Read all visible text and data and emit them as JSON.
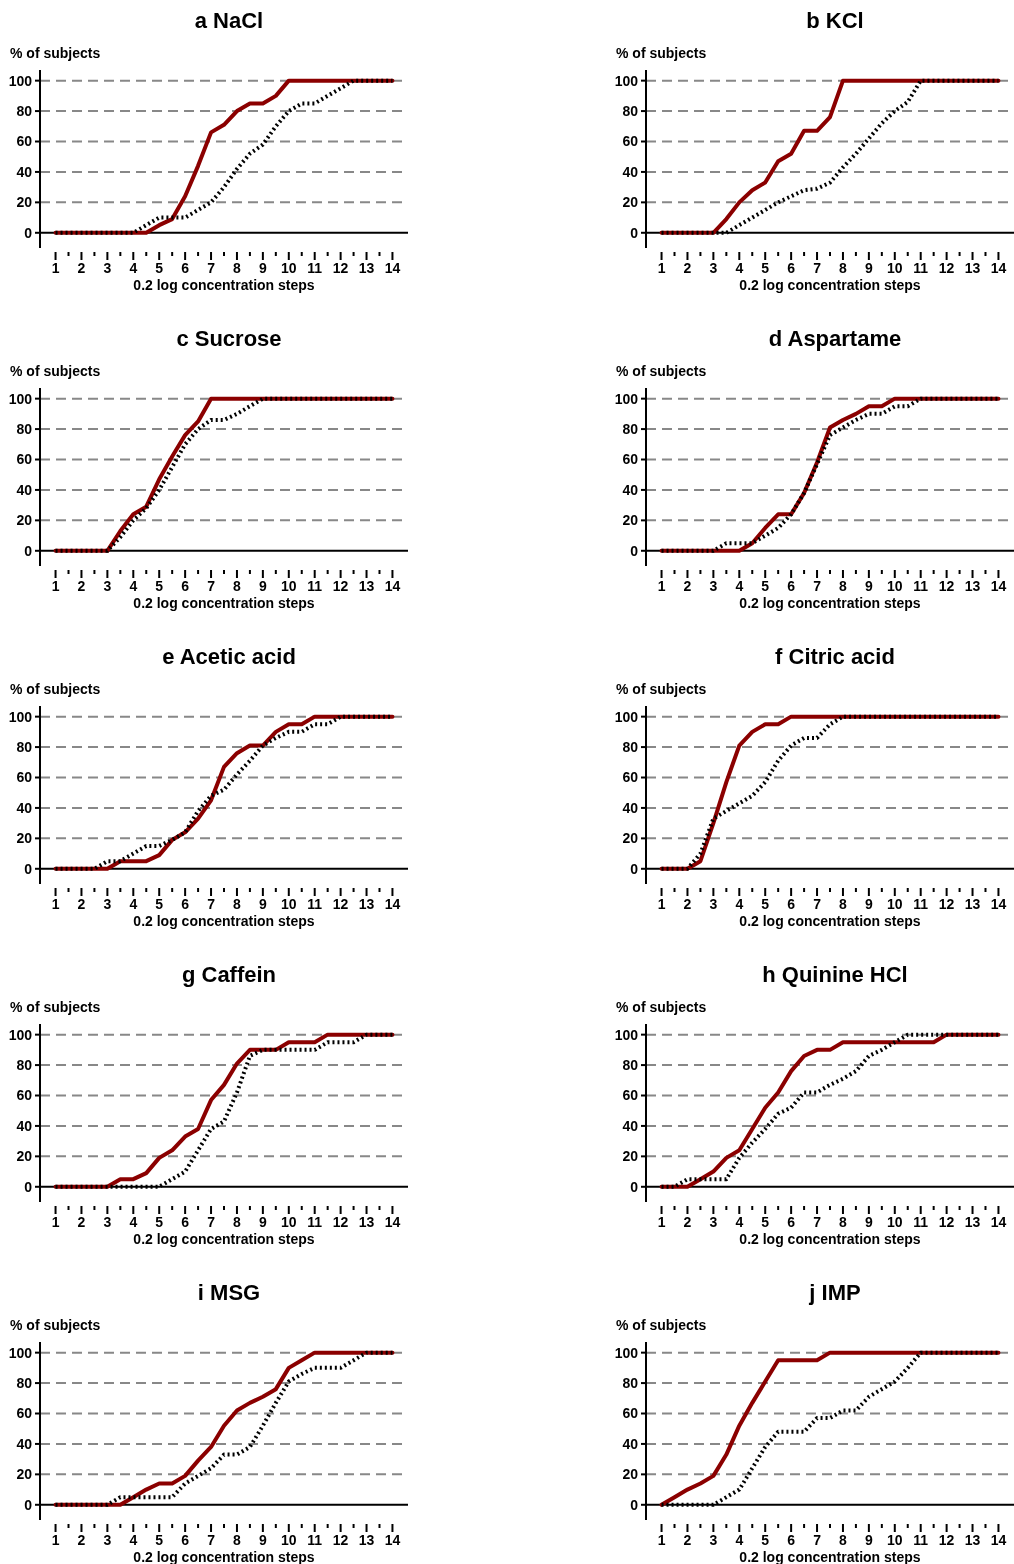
{
  "chart_data": [
    {
      "type": "line",
      "title": "a NaCl",
      "ylabel": "% of subjects",
      "xlabel": "0.2 log concentration steps",
      "xlim": [
        0.4,
        14.6
      ],
      "ylim": [
        -10,
        107
      ],
      "yticks": [
        0,
        20,
        40,
        60,
        80,
        100
      ],
      "xticks": [
        1,
        {
          "value": 1.5,
          "label": null
        },
        2,
        {
          "value": 2.5,
          "label": null
        },
        3,
        {
          "value": 3.5,
          "label": null
        },
        4,
        {
          "value": 4.5,
          "label": null
        },
        5,
        {
          "value": 5.5,
          "label": null
        },
        6,
        {
          "value": 6.5,
          "label": null
        },
        7,
        {
          "value": 7.5,
          "label": null
        },
        8,
        {
          "value": 8.5,
          "label": null
        },
        9,
        {
          "value": 9.5,
          "label": null
        },
        10,
        {
          "value": 10.5,
          "label": null
        },
        11,
        {
          "value": 11.5,
          "label": null
        },
        12,
        {
          "value": 12.5,
          "label": null
        },
        13,
        {
          "value": 13.5,
          "label": null
        },
        14
      ],
      "grid": "y",
      "marker": "none",
      "x": [
        1,
        1.5,
        2,
        2.5,
        3,
        3.5,
        4,
        4.5,
        5,
        5.5,
        6,
        6.5,
        7,
        7.5,
        8,
        8.5,
        9,
        9.5,
        10,
        10.5,
        11,
        11.5,
        12,
        12.5,
        13,
        13.5,
        14
      ],
      "series": [
        {
          "color": "#8b0000",
          "line_style": "solid",
          "values": [
            0,
            0,
            0,
            0,
            0,
            0,
            0,
            0,
            5,
            9,
            24,
            44,
            66,
            71,
            80,
            85,
            85,
            90,
            100,
            100,
            100,
            100,
            100,
            100,
            100,
            100,
            100
          ]
        },
        {
          "color": "#000000",
          "line_style": "dotted",
          "values": [
            0,
            0,
            0,
            0,
            0,
            0,
            0,
            5,
            10,
            10,
            10,
            15,
            20,
            30,
            42,
            52,
            58,
            70,
            80,
            85,
            85,
            90,
            95,
            100,
            100,
            100,
            100
          ]
        }
      ]
    },
    {
      "type": "line",
      "title": "b KCl",
      "ylabel": "% of subjects",
      "xlabel": "0.2 log concentration steps",
      "xlim": [
        0.4,
        14.6
      ],
      "ylim": [
        -10,
        107
      ],
      "yticks": [
        0,
        20,
        40,
        60,
        80,
        100
      ],
      "xticks": [
        1,
        {
          "value": 1.5,
          "label": null
        },
        2,
        {
          "value": 2.5,
          "label": null
        },
        3,
        {
          "value": 3.5,
          "label": null
        },
        4,
        {
          "value": 4.5,
          "label": null
        },
        5,
        {
          "value": 5.5,
          "label": null
        },
        6,
        {
          "value": 6.5,
          "label": null
        },
        7,
        {
          "value": 7.5,
          "label": null
        },
        8,
        {
          "value": 8.5,
          "label": null
        },
        9,
        {
          "value": 9.5,
          "label": null
        },
        10,
        {
          "value": 10.5,
          "label": null
        },
        11,
        {
          "value": 11.5,
          "label": null
        },
        12,
        {
          "value": 12.5,
          "label": null
        },
        13,
        {
          "value": 13.5,
          "label": null
        },
        14
      ],
      "grid": "y",
      "marker": "none",
      "x": [
        1,
        1.5,
        2,
        2.5,
        3,
        3.5,
        4,
        4.5,
        5,
        5.5,
        6,
        6.5,
        7,
        7.5,
        8,
        8.5,
        9,
        9.5,
        10,
        10.5,
        11,
        11.5,
        12,
        12.5,
        13,
        13.5,
        14
      ],
      "series": [
        {
          "color": "#8b0000",
          "line_style": "solid",
          "values": [
            0,
            0,
            0,
            0,
            0,
            9,
            20,
            28,
            33,
            47,
            52,
            67,
            67,
            76,
            100,
            100,
            100,
            100,
            100,
            100,
            100,
            100,
            100,
            100,
            100,
            100,
            100
          ]
        },
        {
          "color": "#000000",
          "line_style": "dotted",
          "values": [
            0,
            0,
            0,
            0,
            0,
            0,
            5,
            10,
            15,
            20,
            24,
            28,
            29,
            33,
            43,
            52,
            62,
            72,
            80,
            86,
            100,
            100,
            100,
            100,
            100,
            100,
            100
          ]
        }
      ]
    },
    {
      "type": "line",
      "title": "c Sucrose",
      "ylabel": "% of subjects",
      "xlabel": "0.2 log concentration steps",
      "xlim": [
        0.4,
        14.6
      ],
      "ylim": [
        -10,
        107
      ],
      "yticks": [
        0,
        20,
        40,
        60,
        80,
        100
      ],
      "xticks": [
        1,
        {
          "value": 1.5,
          "label": null
        },
        2,
        {
          "value": 2.5,
          "label": null
        },
        3,
        {
          "value": 3.5,
          "label": null
        },
        4,
        {
          "value": 4.5,
          "label": null
        },
        5,
        {
          "value": 5.5,
          "label": null
        },
        6,
        {
          "value": 6.5,
          "label": null
        },
        7,
        {
          "value": 7.5,
          "label": null
        },
        8,
        {
          "value": 8.5,
          "label": null
        },
        9,
        {
          "value": 9.5,
          "label": null
        },
        10,
        {
          "value": 10.5,
          "label": null
        },
        11,
        {
          "value": 11.5,
          "label": null
        },
        12,
        {
          "value": 12.5,
          "label": null
        },
        13,
        {
          "value": 13.5,
          "label": null
        },
        14
      ],
      "grid": "y",
      "marker": "none",
      "x": [
        1,
        1.5,
        2,
        2.5,
        3,
        3.5,
        4,
        4.5,
        5,
        5.5,
        6,
        6.5,
        7,
        7.5,
        8,
        8.5,
        9,
        9.5,
        10,
        10.5,
        11,
        11.5,
        12,
        12.5,
        13,
        13.5,
        14
      ],
      "series": [
        {
          "color": "#8b0000",
          "line_style": "solid",
          "values": [
            0,
            0,
            0,
            0,
            0,
            13,
            24,
            29,
            47,
            62,
            76,
            85,
            100,
            100,
            100,
            100,
            100,
            100,
            100,
            100,
            100,
            100,
            100,
            100,
            100,
            100,
            100
          ]
        },
        {
          "color": "#000000",
          "line_style": "dotted",
          "values": [
            0,
            0,
            0,
            0,
            0,
            9,
            20,
            28,
            40,
            55,
            70,
            80,
            86,
            86,
            90,
            95,
            100,
            100,
            100,
            100,
            100,
            100,
            100,
            100,
            100,
            100,
            100
          ]
        }
      ]
    },
    {
      "type": "line",
      "title": "d Aspartame",
      "ylabel": "% of subjects",
      "xlabel": "0.2 log concentration steps",
      "xlim": [
        0.4,
        14.6
      ],
      "ylim": [
        -10,
        107
      ],
      "yticks": [
        0,
        20,
        40,
        60,
        80,
        100
      ],
      "xticks": [
        1,
        {
          "value": 1.5,
          "label": null
        },
        2,
        {
          "value": 2.5,
          "label": null
        },
        3,
        {
          "value": 3.5,
          "label": null
        },
        4,
        {
          "value": 4.5,
          "label": null
        },
        5,
        {
          "value": 5.5,
          "label": null
        },
        6,
        {
          "value": 6.5,
          "label": null
        },
        7,
        {
          "value": 7.5,
          "label": null
        },
        8,
        {
          "value": 8.5,
          "label": null
        },
        9,
        {
          "value": 9.5,
          "label": null
        },
        10,
        {
          "value": 10.5,
          "label": null
        },
        11,
        {
          "value": 11.5,
          "label": null
        },
        12,
        {
          "value": 12.5,
          "label": null
        },
        13,
        {
          "value": 13.5,
          "label": null
        },
        14
      ],
      "grid": "y",
      "marker": "none",
      "x": [
        1,
        1.5,
        2,
        2.5,
        3,
        3.5,
        4,
        4.5,
        5,
        5.5,
        6,
        6.5,
        7,
        7.5,
        8,
        8.5,
        9,
        9.5,
        10,
        10.5,
        11,
        11.5,
        12,
        12.5,
        13,
        13.5,
        14
      ],
      "series": [
        {
          "color": "#8b0000",
          "line_style": "solid",
          "values": [
            0,
            0,
            0,
            0,
            0,
            0,
            0,
            5,
            15,
            24,
            24,
            38,
            58,
            81,
            86,
            90,
            95,
            95,
            100,
            100,
            100,
            100,
            100,
            100,
            100,
            100,
            100
          ]
        },
        {
          "color": "#000000",
          "line_style": "dotted",
          "values": [
            0,
            0,
            0,
            0,
            0,
            5,
            5,
            5,
            10,
            15,
            24,
            38,
            57,
            76,
            81,
            86,
            90,
            90,
            95,
            95,
            100,
            100,
            100,
            100,
            100,
            100,
            100
          ]
        }
      ]
    },
    {
      "type": "line",
      "title": "e Acetic acid",
      "ylabel": "% of subjects",
      "xlabel": "0.2 log concentration steps",
      "xlim": [
        0.4,
        14.6
      ],
      "ylim": [
        -10,
        107
      ],
      "yticks": [
        0,
        20,
        40,
        60,
        80,
        100
      ],
      "xticks": [
        1,
        {
          "value": 1.5,
          "label": null
        },
        2,
        {
          "value": 2.5,
          "label": null
        },
        3,
        {
          "value": 3.5,
          "label": null
        },
        4,
        {
          "value": 4.5,
          "label": null
        },
        5,
        {
          "value": 5.5,
          "label": null
        },
        6,
        {
          "value": 6.5,
          "label": null
        },
        7,
        {
          "value": 7.5,
          "label": null
        },
        8,
        {
          "value": 8.5,
          "label": null
        },
        9,
        {
          "value": 9.5,
          "label": null
        },
        10,
        {
          "value": 10.5,
          "label": null
        },
        11,
        {
          "value": 11.5,
          "label": null
        },
        12,
        {
          "value": 12.5,
          "label": null
        },
        13,
        {
          "value": 13.5,
          "label": null
        },
        14
      ],
      "grid": "y",
      "marker": "none",
      "x": [
        1,
        1.5,
        2,
        2.5,
        3,
        3.5,
        4,
        4.5,
        5,
        5.5,
        6,
        6.5,
        7,
        7.5,
        8,
        8.5,
        9,
        9.5,
        10,
        10.5,
        11,
        11.5,
        12,
        12.5,
        13,
        13.5,
        14
      ],
      "series": [
        {
          "color": "#8b0000",
          "line_style": "solid",
          "values": [
            0,
            0,
            0,
            0,
            0,
            5,
            5,
            5,
            9,
            19,
            24,
            33,
            45,
            67,
            76,
            81,
            81,
            90,
            95,
            95,
            100,
            100,
            100,
            100,
            100,
            100,
            100
          ]
        },
        {
          "color": "#000000",
          "line_style": "dotted",
          "values": [
            0,
            0,
            0,
            0,
            5,
            5,
            10,
            15,
            15,
            19,
            24,
            38,
            48,
            52,
            62,
            71,
            81,
            86,
            90,
            90,
            95,
            95,
            100,
            100,
            100,
            100,
            100
          ]
        }
      ]
    },
    {
      "type": "line",
      "title": "f Citric acid",
      "ylabel": "% of subjects",
      "xlabel": "0.2 log concentration steps",
      "xlim": [
        0.4,
        14.6
      ],
      "ylim": [
        -10,
        107
      ],
      "yticks": [
        0,
        20,
        40,
        60,
        80,
        100
      ],
      "xticks": [
        1,
        {
          "value": 1.5,
          "label": null
        },
        2,
        {
          "value": 2.5,
          "label": null
        },
        3,
        {
          "value": 3.5,
          "label": null
        },
        4,
        {
          "value": 4.5,
          "label": null
        },
        5,
        {
          "value": 5.5,
          "label": null
        },
        6,
        {
          "value": 6.5,
          "label": null
        },
        7,
        {
          "value": 7.5,
          "label": null
        },
        8,
        {
          "value": 8.5,
          "label": null
        },
        9,
        {
          "value": 9.5,
          "label": null
        },
        10,
        {
          "value": 10.5,
          "label": null
        },
        11,
        {
          "value": 11.5,
          "label": null
        },
        12,
        {
          "value": 12.5,
          "label": null
        },
        13,
        {
          "value": 13.5,
          "label": null
        },
        14
      ],
      "grid": "y",
      "marker": "none",
      "x": [
        1,
        1.5,
        2,
        2.5,
        3,
        3.5,
        4,
        4.5,
        5,
        5.5,
        6,
        6.5,
        7,
        7.5,
        8,
        8.5,
        9,
        9.5,
        10,
        10.5,
        11,
        11.5,
        12,
        12.5,
        13,
        13.5,
        14
      ],
      "series": [
        {
          "color": "#8b0000",
          "line_style": "solid",
          "values": [
            0,
            0,
            0,
            5,
            30,
            57,
            81,
            90,
            95,
            95,
            100,
            100,
            100,
            100,
            100,
            100,
            100,
            100,
            100,
            100,
            100,
            100,
            100,
            100,
            100,
            100,
            100
          ]
        },
        {
          "color": "#000000",
          "line_style": "dotted",
          "values": [
            0,
            0,
            0,
            10,
            33,
            38,
            43,
            48,
            57,
            71,
            81,
            86,
            86,
            95,
            100,
            100,
            100,
            100,
            100,
            100,
            100,
            100,
            100,
            100,
            100,
            100,
            100
          ]
        }
      ]
    },
    {
      "type": "line",
      "title": "g Caffein",
      "ylabel": "% of subjects",
      "xlabel": "0.2 log concentration steps",
      "xlim": [
        0.4,
        14.6
      ],
      "ylim": [
        -10,
        107
      ],
      "yticks": [
        0,
        20,
        40,
        60,
        80,
        100
      ],
      "xticks": [
        1,
        {
          "value": 1.5,
          "label": null
        },
        2,
        {
          "value": 2.5,
          "label": null
        },
        3,
        {
          "value": 3.5,
          "label": null
        },
        4,
        {
          "value": 4.5,
          "label": null
        },
        5,
        {
          "value": 5.5,
          "label": null
        },
        6,
        {
          "value": 6.5,
          "label": null
        },
        7,
        {
          "value": 7.5,
          "label": null
        },
        8,
        {
          "value": 8.5,
          "label": null
        },
        9,
        {
          "value": 9.5,
          "label": null
        },
        10,
        {
          "value": 10.5,
          "label": null
        },
        11,
        {
          "value": 11.5,
          "label": null
        },
        12,
        {
          "value": 12.5,
          "label": null
        },
        13,
        {
          "value": 13.5,
          "label": null
        },
        14
      ],
      "grid": "y",
      "marker": "none",
      "x": [
        1,
        1.5,
        2,
        2.5,
        3,
        3.5,
        4,
        4.5,
        5,
        5.5,
        6,
        6.5,
        7,
        7.5,
        8,
        8.5,
        9,
        9.5,
        10,
        10.5,
        11,
        11.5,
        12,
        12.5,
        13,
        13.5,
        14
      ],
      "series": [
        {
          "color": "#8b0000",
          "line_style": "solid",
          "values": [
            0,
            0,
            0,
            0,
            0,
            5,
            5,
            9,
            19,
            24,
            33,
            38,
            57,
            67,
            81,
            90,
            90,
            90,
            95,
            95,
            95,
            100,
            100,
            100,
            100,
            100,
            100
          ]
        },
        {
          "color": "#000000",
          "line_style": "dotted",
          "values": [
            0,
            0,
            0,
            0,
            0,
            0,
            0,
            0,
            0,
            5,
            10,
            24,
            38,
            43,
            62,
            86,
            90,
            90,
            90,
            90,
            90,
            95,
            95,
            95,
            100,
            100,
            100
          ]
        }
      ]
    },
    {
      "type": "line",
      "title": "h Quinine HCl",
      "ylabel": "% of subjects",
      "xlabel": "0.2 log concentration steps",
      "xlim": [
        0.4,
        14.6
      ],
      "ylim": [
        -10,
        107
      ],
      "yticks": [
        0,
        20,
        40,
        60,
        80,
        100
      ],
      "xticks": [
        1,
        {
          "value": 1.5,
          "label": null
        },
        2,
        {
          "value": 2.5,
          "label": null
        },
        3,
        {
          "value": 3.5,
          "label": null
        },
        4,
        {
          "value": 4.5,
          "label": null
        },
        5,
        {
          "value": 5.5,
          "label": null
        },
        6,
        {
          "value": 6.5,
          "label": null
        },
        7,
        {
          "value": 7.5,
          "label": null
        },
        8,
        {
          "value": 8.5,
          "label": null
        },
        9,
        {
          "value": 9.5,
          "label": null
        },
        10,
        {
          "value": 10.5,
          "label": null
        },
        11,
        {
          "value": 11.5,
          "label": null
        },
        12,
        {
          "value": 12.5,
          "label": null
        },
        13,
        {
          "value": 13.5,
          "label": null
        },
        14
      ],
      "grid": "y",
      "marker": "none",
      "x": [
        1,
        1.5,
        2,
        2.5,
        3,
        3.5,
        4,
        4.5,
        5,
        5.5,
        6,
        6.5,
        7,
        7.5,
        8,
        8.5,
        9,
        9.5,
        10,
        10.5,
        11,
        11.5,
        12,
        12.5,
        13,
        13.5,
        14
      ],
      "series": [
        {
          "color": "#8b0000",
          "line_style": "solid",
          "values": [
            0,
            0,
            0,
            5,
            10,
            19,
            24,
            38,
            52,
            62,
            76,
            86,
            90,
            90,
            95,
            95,
            95,
            95,
            95,
            95,
            95,
            95,
            100,
            100,
            100,
            100,
            100
          ]
        },
        {
          "color": "#000000",
          "line_style": "dotted",
          "values": [
            0,
            0,
            5,
            5,
            5,
            5,
            19,
            29,
            38,
            48,
            52,
            62,
            62,
            67,
            71,
            76,
            86,
            90,
            95,
            100,
            100,
            100,
            100,
            100,
            100,
            100,
            100
          ]
        }
      ]
    },
    {
      "type": "line",
      "title": "i MSG",
      "ylabel": "% of subjects",
      "xlabel": "0.2 log concentration steps",
      "xlim": [
        0.4,
        14.6
      ],
      "ylim": [
        -10,
        107
      ],
      "yticks": [
        0,
        20,
        40,
        60,
        80,
        100
      ],
      "xticks": [
        1,
        {
          "value": 1.5,
          "label": null
        },
        2,
        {
          "value": 2.5,
          "label": null
        },
        3,
        {
          "value": 3.5,
          "label": null
        },
        4,
        {
          "value": 4.5,
          "label": null
        },
        5,
        {
          "value": 5.5,
          "label": null
        },
        6,
        {
          "value": 6.5,
          "label": null
        },
        7,
        {
          "value": 7.5,
          "label": null
        },
        8,
        {
          "value": 8.5,
          "label": null
        },
        9,
        {
          "value": 9.5,
          "label": null
        },
        10,
        {
          "value": 10.5,
          "label": null
        },
        11,
        {
          "value": 11.5,
          "label": null
        },
        12,
        {
          "value": 12.5,
          "label": null
        },
        13,
        {
          "value": 13.5,
          "label": null
        },
        14
      ],
      "grid": "y",
      "marker": "none",
      "x": [
        1,
        1.5,
        2,
        2.5,
        3,
        3.5,
        4,
        4.5,
        5,
        5.5,
        6,
        6.5,
        7,
        7.5,
        8,
        8.5,
        9,
        9.5,
        10,
        10.5,
        11,
        11.5,
        12,
        12.5,
        13,
        13.5,
        14
      ],
      "series": [
        {
          "color": "#8b0000",
          "line_style": "solid",
          "values": [
            0,
            0,
            0,
            0,
            0,
            0,
            5,
            10,
            14,
            14,
            19,
            29,
            38,
            52,
            62,
            67,
            71,
            76,
            90,
            95,
            100,
            100,
            100,
            100,
            100,
            100,
            100
          ]
        },
        {
          "color": "#000000",
          "line_style": "dotted",
          "values": [
            0,
            0,
            0,
            0,
            0,
            5,
            5,
            5,
            5,
            5,
            14,
            19,
            24,
            33,
            33,
            38,
            52,
            67,
            81,
            86,
            90,
            90,
            90,
            95,
            100,
            100,
            100
          ]
        }
      ]
    },
    {
      "type": "line",
      "title": "j IMP",
      "ylabel": "% of subjects",
      "xlabel": "0.2 log concentration steps",
      "xlim": [
        0.4,
        14.6
      ],
      "ylim": [
        -10,
        107
      ],
      "yticks": [
        0,
        20,
        40,
        60,
        80,
        100
      ],
      "xticks": [
        1,
        {
          "value": 1.5,
          "label": null
        },
        2,
        {
          "value": 2.5,
          "label": null
        },
        3,
        {
          "value": 3.5,
          "label": null
        },
        4,
        {
          "value": 4.5,
          "label": null
        },
        5,
        {
          "value": 5.5,
          "label": null
        },
        6,
        {
          "value": 6.5,
          "label": null
        },
        7,
        {
          "value": 7.5,
          "label": null
        },
        8,
        {
          "value": 8.5,
          "label": null
        },
        9,
        {
          "value": 9.5,
          "label": null
        },
        10,
        {
          "value": 10.5,
          "label": null
        },
        11,
        {
          "value": 11.5,
          "label": null
        },
        12,
        {
          "value": 12.5,
          "label": null
        },
        13,
        {
          "value": 13.5,
          "label": null
        },
        14
      ],
      "grid": "y",
      "marker": "none",
      "x": [
        1,
        1.5,
        2,
        2.5,
        3,
        3.5,
        4,
        4.5,
        5,
        5.5,
        6,
        6.5,
        7,
        7.5,
        8,
        8.5,
        9,
        9.5,
        10,
        10.5,
        11,
        11.5,
        12,
        12.5,
        13,
        13.5,
        14
      ],
      "series": [
        {
          "color": "#8b0000",
          "line_style": "solid",
          "values": [
            0,
            5,
            10,
            14,
            19,
            33,
            52,
            67,
            81,
            95,
            95,
            95,
            95,
            100,
            100,
            100,
            100,
            100,
            100,
            100,
            100,
            100,
            100,
            100,
            100,
            100,
            100
          ]
        },
        {
          "color": "#000000",
          "line_style": "dotted",
          "values": [
            0,
            0,
            0,
            0,
            0,
            5,
            10,
            24,
            38,
            48,
            48,
            48,
            57,
            57,
            62,
            62,
            71,
            76,
            81,
            90,
            100,
            100,
            100,
            100,
            100,
            100,
            100
          ]
        }
      ]
    }
  ]
}
